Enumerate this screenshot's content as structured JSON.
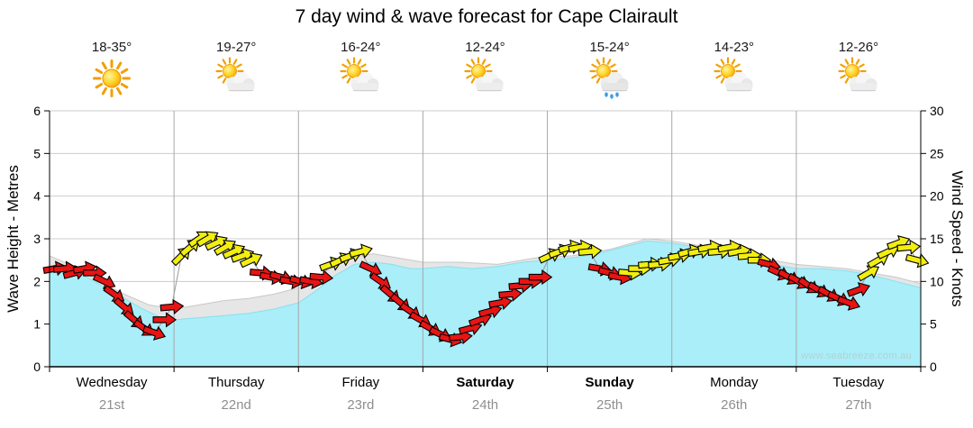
{
  "title": "7 day wind & wave forecast for Cape Clairault",
  "watermark": "www.seabreeze.com.au",
  "axes": {
    "left_label": "Wave Height - Metres",
    "right_label": "Wind Speed - Knots",
    "left_ticks": [
      0,
      1,
      2,
      3,
      4,
      5,
      6
    ],
    "right_ticks": [
      0,
      5,
      10,
      15,
      20,
      25,
      30
    ]
  },
  "days": [
    {
      "name": "Wednesday",
      "date": "21st",
      "temp": "18-35°",
      "icon": "sunny",
      "bold": false
    },
    {
      "name": "Thursday",
      "date": "22nd",
      "temp": "19-27°",
      "icon": "partly-cloudy",
      "bold": false
    },
    {
      "name": "Friday",
      "date": "23rd",
      "temp": "16-24°",
      "icon": "partly-cloudy",
      "bold": false
    },
    {
      "name": "Saturday",
      "date": "24th",
      "temp": "12-24°",
      "icon": "partly-cloudy",
      "bold": true
    },
    {
      "name": "Sunday",
      "date": "25th",
      "temp": "15-24°",
      "icon": "rain-showers",
      "bold": true
    },
    {
      "name": "Monday",
      "date": "26th",
      "temp": "14-23°",
      "icon": "partly-cloudy",
      "bold": false
    },
    {
      "name": "Tuesday",
      "date": "27th",
      "temp": "12-26°",
      "icon": "partly-cloudy",
      "bold": false
    }
  ],
  "chart_data": {
    "type": "area",
    "x_unit": "days (0 = Wednesday 00:00, 7 = Tuesday 24:00)",
    "x_range": [
      0,
      7
    ],
    "left_ylim": [
      0,
      6
    ],
    "right_ylim": [
      0,
      30
    ],
    "grid": true,
    "series": [
      {
        "name": "secondary-wave-height-m",
        "color": "#e6e6e6",
        "outline": "#c8c8c8",
        "points": [
          [
            0,
            2.6
          ],
          [
            0.2,
            2.35
          ],
          [
            0.4,
            2.0
          ],
          [
            0.6,
            1.7
          ],
          [
            0.8,
            1.45
          ],
          [
            1.0,
            1.35
          ],
          [
            1.2,
            1.45
          ],
          [
            1.4,
            1.55
          ],
          [
            1.6,
            1.6
          ],
          [
            1.8,
            1.7
          ],
          [
            2.0,
            1.85
          ],
          [
            2.2,
            2.2
          ],
          [
            2.4,
            2.55
          ],
          [
            2.6,
            2.65
          ],
          [
            2.8,
            2.55
          ],
          [
            3.0,
            2.45
          ],
          [
            3.3,
            2.45
          ],
          [
            3.6,
            2.4
          ],
          [
            3.9,
            2.55
          ],
          [
            4.2,
            2.6
          ],
          [
            4.5,
            2.75
          ],
          [
            4.8,
            3.0
          ],
          [
            5.0,
            2.95
          ],
          [
            5.3,
            2.8
          ],
          [
            5.6,
            2.6
          ],
          [
            6.0,
            2.4
          ],
          [
            6.4,
            2.3
          ],
          [
            6.8,
            2.1
          ],
          [
            7.0,
            1.95
          ]
        ]
      },
      {
        "name": "wave-height-m",
        "color": "#a9eef9",
        "outline": "#8adfef",
        "points": [
          [
            0,
            2.3
          ],
          [
            0.15,
            2.25
          ],
          [
            0.3,
            2.1
          ],
          [
            0.45,
            1.85
          ],
          [
            0.6,
            1.6
          ],
          [
            0.75,
            1.35
          ],
          [
            0.9,
            1.15
          ],
          [
            1.0,
            1.1
          ],
          [
            1.2,
            1.15
          ],
          [
            1.4,
            1.2
          ],
          [
            1.6,
            1.25
          ],
          [
            1.8,
            1.35
          ],
          [
            2.0,
            1.5
          ],
          [
            2.15,
            1.8
          ],
          [
            2.3,
            2.15
          ],
          [
            2.45,
            2.4
          ],
          [
            2.6,
            2.45
          ],
          [
            2.75,
            2.4
          ],
          [
            2.9,
            2.3
          ],
          [
            3.0,
            2.3
          ],
          [
            3.2,
            2.35
          ],
          [
            3.4,
            2.3
          ],
          [
            3.6,
            2.35
          ],
          [
            3.8,
            2.45
          ],
          [
            4.0,
            2.5
          ],
          [
            4.2,
            2.55
          ],
          [
            4.4,
            2.65
          ],
          [
            4.6,
            2.8
          ],
          [
            4.8,
            2.95
          ],
          [
            5.0,
            2.9
          ],
          [
            5.2,
            2.8
          ],
          [
            5.4,
            2.65
          ],
          [
            5.6,
            2.5
          ],
          [
            5.8,
            2.4
          ],
          [
            6.0,
            2.3
          ],
          [
            6.2,
            2.3
          ],
          [
            6.4,
            2.25
          ],
          [
            6.6,
            2.15
          ],
          [
            6.8,
            2.0
          ],
          [
            7.0,
            1.85
          ]
        ]
      }
    ],
    "wind_arrows": {
      "unit": "knots",
      "colors": {
        "r": "#e81414",
        "y": "#f2ee10"
      },
      "note": "each point = [day_x, knots, arrow_rotation_deg (0=E, negative=up-right), color]",
      "points": [
        [
          0.04,
          11.5,
          -10,
          "r"
        ],
        [
          0.12,
          11.5,
          -5,
          "r"
        ],
        [
          0.2,
          11,
          -15,
          "r"
        ],
        [
          0.28,
          11.5,
          -10,
          "r"
        ],
        [
          0.36,
          11,
          0,
          "r"
        ],
        [
          0.44,
          10,
          25,
          "r"
        ],
        [
          0.52,
          8.5,
          35,
          "r"
        ],
        [
          0.6,
          7,
          40,
          "r"
        ],
        [
          0.68,
          5.5,
          40,
          "r"
        ],
        [
          0.76,
          4.5,
          35,
          "r"
        ],
        [
          0.84,
          4,
          20,
          "r"
        ],
        [
          0.92,
          5.5,
          0,
          "r"
        ],
        [
          0.98,
          7,
          -5,
          "r"
        ],
        [
          1.06,
          13,
          -45,
          "y"
        ],
        [
          1.13,
          14,
          -40,
          "y"
        ],
        [
          1.2,
          15,
          -35,
          "y"
        ],
        [
          1.27,
          15,
          -30,
          "y"
        ],
        [
          1.34,
          14.5,
          -25,
          "y"
        ],
        [
          1.41,
          14,
          -30,
          "y"
        ],
        [
          1.48,
          13.5,
          -25,
          "y"
        ],
        [
          1.55,
          13,
          -20,
          "y"
        ],
        [
          1.62,
          12.5,
          -25,
          "y"
        ],
        [
          1.7,
          11,
          5,
          "r"
        ],
        [
          1.78,
          10.5,
          10,
          "r"
        ],
        [
          1.86,
          10.5,
          15,
          "r"
        ],
        [
          1.94,
          10,
          10,
          "r"
        ],
        [
          2.02,
          10,
          15,
          "r"
        ],
        [
          2.1,
          10,
          10,
          "r"
        ],
        [
          2.18,
          10.5,
          5,
          "r"
        ],
        [
          2.26,
          12,
          -20,
          "y"
        ],
        [
          2.34,
          12.5,
          -25,
          "y"
        ],
        [
          2.42,
          13,
          -20,
          "y"
        ],
        [
          2.5,
          13.5,
          -15,
          "y"
        ],
        [
          2.58,
          11.5,
          25,
          "r"
        ],
        [
          2.66,
          10,
          35,
          "r"
        ],
        [
          2.74,
          8.5,
          40,
          "r"
        ],
        [
          2.82,
          7.5,
          40,
          "r"
        ],
        [
          2.9,
          6.5,
          35,
          "r"
        ],
        [
          2.98,
          5.5,
          30,
          "r"
        ],
        [
          3.06,
          4.5,
          30,
          "r"
        ],
        [
          3.14,
          3.8,
          25,
          "r"
        ],
        [
          3.22,
          3.2,
          15,
          "r"
        ],
        [
          3.3,
          3.5,
          -5,
          "r"
        ],
        [
          3.38,
          4.5,
          -15,
          "r"
        ],
        [
          3.46,
          5.5,
          -20,
          "r"
        ],
        [
          3.54,
          6.5,
          -15,
          "r"
        ],
        [
          3.62,
          7.5,
          -10,
          "r"
        ],
        [
          3.7,
          8.5,
          -5,
          "r"
        ],
        [
          3.78,
          9.5,
          -5,
          "r"
        ],
        [
          3.86,
          10,
          0,
          "r"
        ],
        [
          3.94,
          10.5,
          0,
          "r"
        ],
        [
          4.02,
          13,
          -25,
          "y"
        ],
        [
          4.1,
          13.5,
          -20,
          "y"
        ],
        [
          4.18,
          14,
          -15,
          "y"
        ],
        [
          4.26,
          14,
          -10,
          "y"
        ],
        [
          4.34,
          13.5,
          -5,
          "y"
        ],
        [
          4.42,
          11.5,
          10,
          "r"
        ],
        [
          4.5,
          11,
          15,
          "r"
        ],
        [
          4.58,
          10.5,
          10,
          "r"
        ],
        [
          4.66,
          11,
          5,
          "y"
        ],
        [
          4.74,
          11.5,
          0,
          "y"
        ],
        [
          4.82,
          12,
          -5,
          "y"
        ],
        [
          4.9,
          12,
          -5,
          "y"
        ],
        [
          4.98,
          12.5,
          -10,
          "y"
        ],
        [
          5.06,
          13,
          -10,
          "y"
        ],
        [
          5.14,
          13.5,
          -15,
          "y"
        ],
        [
          5.22,
          13.5,
          -10,
          "y"
        ],
        [
          5.3,
          14,
          -10,
          "y"
        ],
        [
          5.38,
          13.5,
          -5,
          "y"
        ],
        [
          5.46,
          14,
          -10,
          "y"
        ],
        [
          5.54,
          13.5,
          -10,
          "y"
        ],
        [
          5.62,
          13,
          -5,
          "y"
        ],
        [
          5.7,
          12.5,
          0,
          "y"
        ],
        [
          5.78,
          12,
          15,
          "r"
        ],
        [
          5.86,
          11,
          25,
          "r"
        ],
        [
          5.94,
          10.5,
          30,
          "r"
        ],
        [
          6.02,
          10,
          30,
          "r"
        ],
        [
          6.1,
          9.5,
          35,
          "r"
        ],
        [
          6.18,
          9,
          30,
          "r"
        ],
        [
          6.26,
          8.5,
          30,
          "r"
        ],
        [
          6.34,
          8,
          25,
          "r"
        ],
        [
          6.42,
          7.5,
          20,
          "r"
        ],
        [
          6.5,
          9,
          -20,
          "r"
        ],
        [
          6.58,
          11,
          -30,
          "y"
        ],
        [
          6.66,
          12.5,
          -30,
          "y"
        ],
        [
          6.74,
          13.5,
          -25,
          "y"
        ],
        [
          6.82,
          14.5,
          -20,
          "y"
        ],
        [
          6.9,
          14,
          -5,
          "y"
        ],
        [
          6.97,
          12.5,
          15,
          "y"
        ]
      ]
    }
  }
}
